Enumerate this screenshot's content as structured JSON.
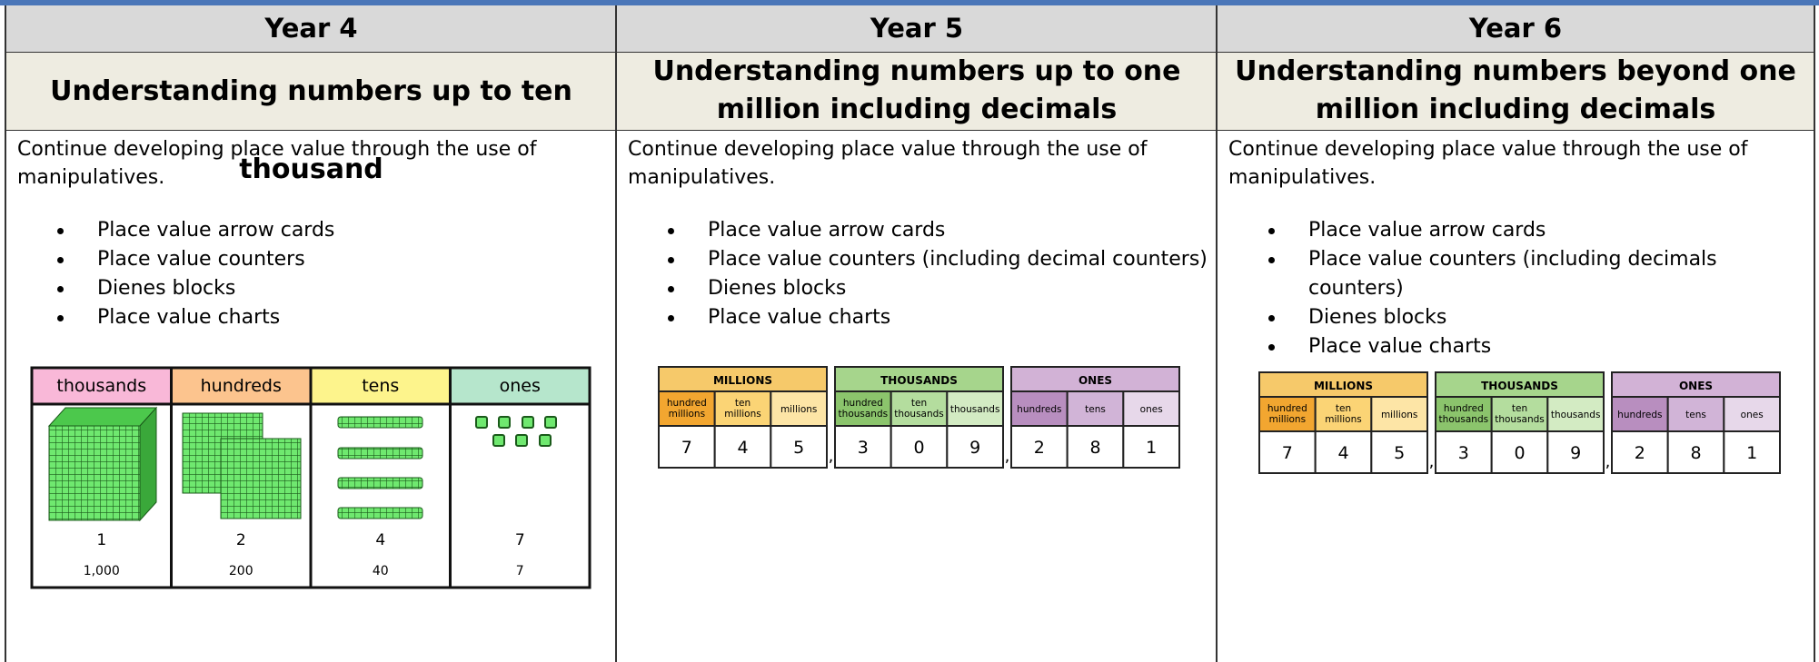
{
  "columns": [
    {
      "year": "Year 4",
      "heading": "Understanding numbers up to ten thousand",
      "intro": "Continue developing place value through the use of manipulatives.",
      "bullets": [
        "Place value arrow cards",
        "Place value counters",
        "Dienes blocks",
        "Place value charts"
      ],
      "figure": {
        "headers": [
          "thousands",
          "hundreds",
          "tens",
          "ones"
        ],
        "digits": [
          1,
          2,
          4,
          7
        ],
        "values": [
          "1,000",
          "200",
          "40",
          "7"
        ]
      }
    },
    {
      "year": "Year 5",
      "heading": "Understanding numbers up to one million including decimals",
      "intro": "Continue developing place value through the use of manipulatives.",
      "bullets": [
        "Place value arrow cards",
        "Place value counters (including decimal counters)",
        "Dienes blocks",
        "Place value charts"
      ],
      "figure": {
        "groups": [
          {
            "name": "MILLIONS",
            "places": [
              "hundred millions",
              "ten millions",
              "millions"
            ],
            "digits": [
              7,
              4,
              5
            ]
          },
          {
            "name": "THOUSANDS",
            "places": [
              "hundred thousands",
              "ten thousands",
              "thousands"
            ],
            "digits": [
              3,
              0,
              9
            ]
          },
          {
            "name": "ONES",
            "places": [
              "hundreds",
              "tens",
              "ones"
            ],
            "digits": [
              2,
              8,
              1
            ]
          }
        ],
        "separators": [
          ",",
          ","
        ]
      }
    },
    {
      "year": "Year 6",
      "heading": "Understanding numbers beyond one million including decimals",
      "intro": "Continue developing place value through the use of manipulatives.",
      "bullets": [
        "Place value arrow cards",
        "Place value counters (including decimals counters)",
        "Dienes blocks",
        "Place value charts"
      ],
      "figure": {
        "groups": [
          {
            "name": "MILLIONS",
            "places": [
              "hundred millions",
              "ten millions",
              "millions"
            ],
            "digits": [
              7,
              4,
              5
            ]
          },
          {
            "name": "THOUSANDS",
            "places": [
              "hundred thousands",
              "ten thousands",
              "thousands"
            ],
            "digits": [
              3,
              0,
              9
            ]
          },
          {
            "name": "ONES",
            "places": [
              "hundreds",
              "tens",
              "ones"
            ],
            "digits": [
              2,
              8,
              1
            ]
          }
        ],
        "separators": [
          ",",
          ","
        ]
      }
    }
  ]
}
